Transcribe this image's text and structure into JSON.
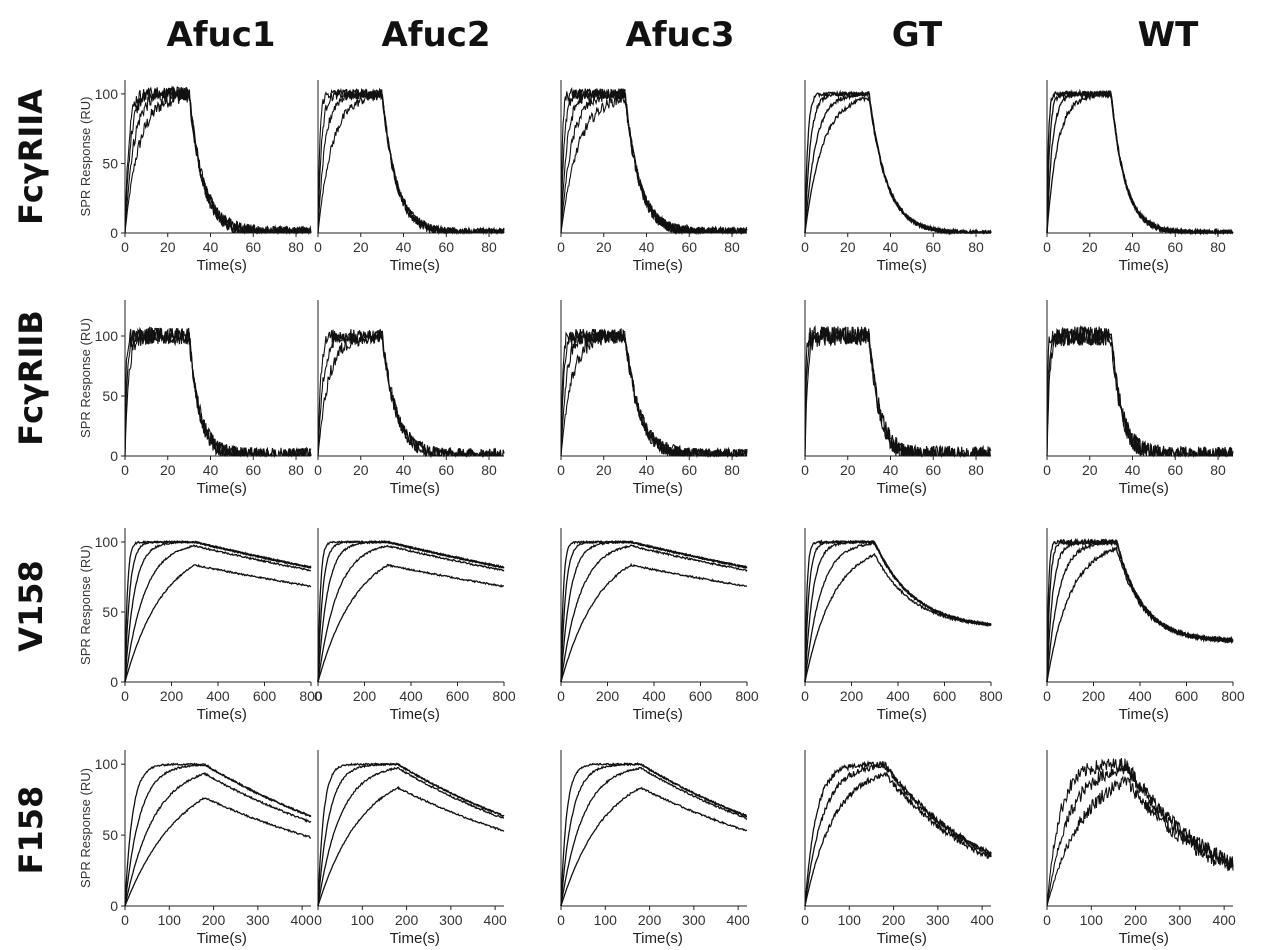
{
  "figure": {
    "columns": [
      "Afuc1",
      "Afuc2",
      "Afuc3",
      "GT",
      "WT"
    ],
    "rows": [
      "FcγRIIA",
      "FcγRIIB",
      "V158",
      "F158"
    ],
    "ylabel": "SPR Response (RU)",
    "xlabel": "Time(s)",
    "line_color": "#111111"
  },
  "chart_data": {
    "type": "line",
    "layout": "4x5 grid of SPR sensorgram panels",
    "rows": [
      {
        "name": "FcγRIIA",
        "xlim": [
          0,
          87
        ],
        "ylim": [
          0,
          110
        ],
        "xticks": [
          0,
          20,
          40,
          60,
          80
        ],
        "yticks": [
          0,
          50,
          100
        ],
        "association_end": 30,
        "panels": [
          {
            "column": "Afuc1",
            "ka": [
              0.15,
              0.25,
              0.4,
              0.6
            ],
            "kd": 0.15,
            "noise": 5,
            "diss_floor": 0,
            "assoc_max": 100
          },
          {
            "column": "Afuc2",
            "ka": [
              0.15,
              0.3,
              0.6,
              1.2
            ],
            "kd": 0.15,
            "noise": 3.5,
            "diss_floor": 0,
            "assoc_max": 100
          },
          {
            "column": "Afuc3",
            "ka": [
              0.12,
              0.2,
              0.35,
              0.7,
              1.5
            ],
            "kd": 0.15,
            "noise": 4,
            "diss_floor": 0,
            "assoc_max": 100
          },
          {
            "column": "GT",
            "ka": [
              0.12,
              0.2,
              0.4,
              0.8
            ],
            "kd": 0.12,
            "noise": 1.5,
            "diss_floor": 0,
            "assoc_max": 100
          },
          {
            "column": "WT",
            "ka": [
              0.2,
              0.4,
              0.8,
              1.5
            ],
            "kd": 0.15,
            "noise": 2,
            "diss_floor": 0,
            "assoc_max": 100
          }
        ]
      },
      {
        "name": "FcγRIIB",
        "xlim": [
          0,
          87
        ],
        "ylim": [
          0,
          130
        ],
        "xticks": [
          0,
          20,
          40,
          60,
          80
        ],
        "yticks": [
          0,
          50,
          100
        ],
        "association_end": 30,
        "panels": [
          {
            "column": "Afuc1",
            "ka": [
              0.6,
              1.0,
              2.0
            ],
            "kd": 0.2,
            "noise": 7,
            "diss_floor": 0,
            "assoc_max": 100
          },
          {
            "column": "Afuc2",
            "ka": [
              0.2,
              0.4,
              0.8
            ],
            "kd": 0.15,
            "noise": 6,
            "diss_floor": 0,
            "assoc_max": 100
          },
          {
            "column": "Afuc3",
            "ka": [
              0.2,
              0.4,
              0.8,
              1.5
            ],
            "kd": 0.15,
            "noise": 6,
            "diss_floor": 0,
            "assoc_max": 100
          },
          {
            "column": "GT",
            "ka": [
              0.8,
              1.5,
              3.0
            ],
            "kd": 0.2,
            "noise": 8,
            "diss_floor": 0,
            "assoc_max": 100
          },
          {
            "column": "WT",
            "ka": [
              0.8,
              1.5,
              3.0
            ],
            "kd": 0.2,
            "noise": 8,
            "diss_floor": 0,
            "assoc_max": 100
          }
        ]
      },
      {
        "name": "V158",
        "xlim": [
          0,
          800
        ],
        "ylim": [
          0,
          110
        ],
        "xticks": [
          0,
          200,
          400,
          600,
          800
        ],
        "yticks": [
          0,
          50,
          100
        ],
        "association_end": 300,
        "panels": [
          {
            "column": "Afuc1",
            "ka": [
              0.006,
              0.012,
              0.025,
              0.05,
              0.1
            ],
            "kd": 0.0004,
            "noise": 0.6,
            "diss_floor": 0,
            "assoc_max": 100
          },
          {
            "column": "Afuc2",
            "ka": [
              0.006,
              0.012,
              0.025,
              0.05,
              0.1
            ],
            "kd": 0.0004,
            "noise": 0.6,
            "diss_floor": 0,
            "assoc_max": 100
          },
          {
            "column": "Afuc3",
            "ka": [
              0.006,
              0.012,
              0.025,
              0.05,
              0.1
            ],
            "kd": 0.0004,
            "noise": 0.6,
            "diss_floor": 0,
            "assoc_max": 100
          },
          {
            "column": "GT",
            "ka": [
              0.008,
              0.015,
              0.03,
              0.06,
              0.12
            ],
            "kd": 0.006,
            "noise": 0.8,
            "diss_floor": 38,
            "assoc_max": 100
          },
          {
            "column": "WT",
            "ka": [
              0.01,
              0.02,
              0.04,
              0.08,
              0.15
            ],
            "kd": 0.009,
            "noise": 1.5,
            "diss_floor": 29,
            "assoc_max": 100
          }
        ]
      },
      {
        "name": "F158",
        "xlim": [
          0,
          420
        ],
        "ylim": [
          0,
          110
        ],
        "xticks": [
          0,
          100,
          200,
          300,
          400
        ],
        "yticks": [
          0,
          50,
          100
        ],
        "association_end": 180,
        "panels": [
          {
            "column": "Afuc1",
            "ka": [
              0.008,
              0.015,
              0.03,
              0.06
            ],
            "kd": 0.0019,
            "noise": 0.6,
            "diss_floor": 0,
            "assoc_max": 100
          },
          {
            "column": "Afuc2",
            "ka": [
              0.01,
              0.02,
              0.04,
              0.08
            ],
            "kd": 0.0019,
            "noise": 0.6,
            "diss_floor": 0,
            "assoc_max": 100
          },
          {
            "column": "Afuc3",
            "ka": [
              0.01,
              0.02,
              0.04,
              0.08
            ],
            "kd": 0.0019,
            "noise": 0.6,
            "diss_floor": 0,
            "assoc_max": 100
          },
          {
            "column": "GT",
            "ka": [
              0.015,
              0.025,
              0.04
            ],
            "kd": 0.0042,
            "noise": 2,
            "diss_floor": 0,
            "assoc_max": 100
          },
          {
            "column": "WT",
            "ka": [
              0.012,
              0.02,
              0.035
            ],
            "kd": 0.005,
            "noise": 5,
            "diss_floor": 0,
            "assoc_max": 100
          }
        ]
      }
    ]
  }
}
